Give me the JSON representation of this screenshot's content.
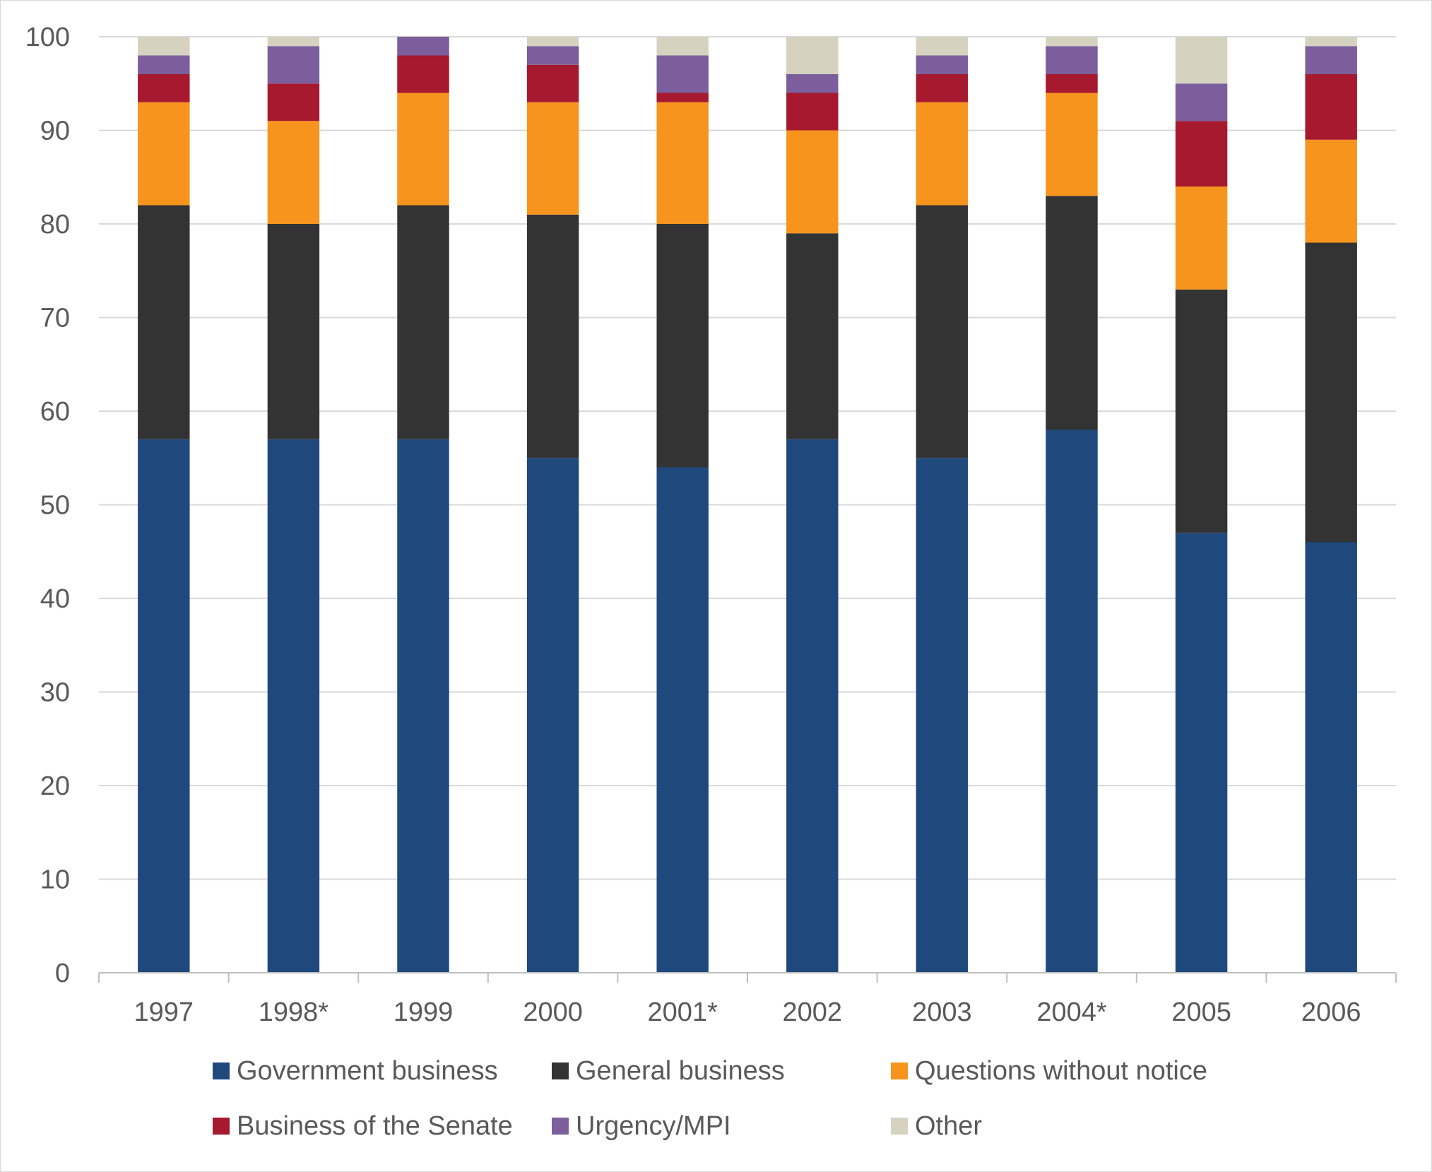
{
  "chart_data": {
    "type": "bar",
    "stacked": true,
    "title": "",
    "xlabel": "",
    "ylabel": "",
    "ylim": [
      0,
      100
    ],
    "yticks": [
      0,
      10,
      20,
      30,
      40,
      50,
      60,
      70,
      80,
      90,
      100
    ],
    "grid": true,
    "legend_position": "bottom",
    "categories": [
      "1997",
      "1998*",
      "1999",
      "2000",
      "2001*",
      "2002",
      "2003",
      "2004*",
      "2005",
      "2006"
    ],
    "series": [
      {
        "name": "Government business",
        "color": "#1f497d",
        "values": [
          57,
          57,
          57,
          55,
          54,
          57,
          55,
          58,
          47,
          46
        ]
      },
      {
        "name": "General business",
        "color": "#333333",
        "values": [
          25,
          23,
          25,
          26,
          26,
          22,
          27,
          25,
          26,
          32
        ]
      },
      {
        "name": "Questions without notice",
        "color": "#f7941d",
        "values": [
          11,
          11,
          12,
          12,
          13,
          11,
          11,
          11,
          11,
          11
        ]
      },
      {
        "name": "Business of the Senate",
        "color": "#a6192e",
        "values": [
          3,
          4,
          4,
          4,
          1,
          4,
          3,
          2,
          7,
          7
        ]
      },
      {
        "name": "Urgency/MPI",
        "color": "#7b5e9b",
        "values": [
          2,
          4,
          2,
          2,
          4,
          2,
          2,
          3,
          4,
          3
        ]
      },
      {
        "name": "Other",
        "color": "#d5d3c0",
        "values": [
          2,
          1,
          0,
          1,
          2,
          4,
          2,
          1,
          5,
          1
        ]
      }
    ]
  }
}
